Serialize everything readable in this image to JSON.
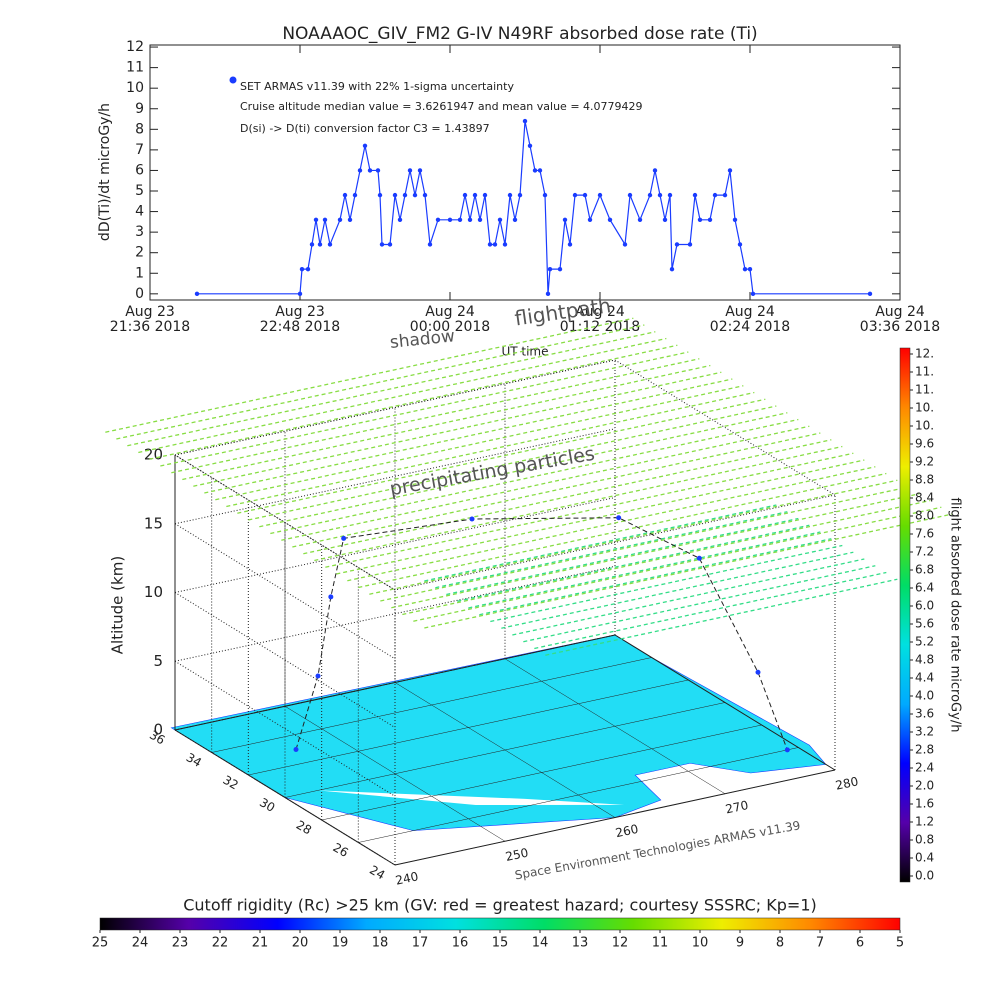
{
  "chart_data": [
    {
      "type": "line",
      "title": "NOAAAOC_GIV_FM2 G-IV    N49RF  absorbed dose rate (Ti)",
      "ylabel": "dD(Ti)/dt microGy/h",
      "xlabel": "UT time",
      "annotations": [
        "Cruise altitude median value = 3.6261947 and mean value = 4.0779429",
        "D(si) -> D(ti) conversion factor C3 = 1.43897"
      ],
      "xlim": [
        21.6,
        27.6
      ],
      "xticks": [
        {
          "value": 21.6,
          "label": [
            "Aug 23",
            "21:36 2018"
          ]
        },
        {
          "value": 22.8,
          "label": [
            "Aug 23",
            "22:48 2018"
          ]
        },
        {
          "value": 24.0,
          "label": [
            "Aug 24",
            "00:00 2018"
          ]
        },
        {
          "value": 25.2,
          "label": [
            "Aug 24",
            "01:12 2018"
          ]
        },
        {
          "value": 26.4,
          "label": [
            "Aug 24",
            "02:24 2018"
          ]
        },
        {
          "value": 27.6,
          "label": [
            "Aug 24",
            "03:36 2018"
          ]
        }
      ],
      "ylim": [
        -0.3,
        12.1
      ],
      "yticks": [
        0,
        1,
        2,
        3,
        4,
        5,
        6,
        7,
        8,
        9,
        10,
        11,
        12
      ],
      "x": [
        21.976,
        22.8,
        22.816,
        22.864,
        22.896,
        22.928,
        22.96,
        23.0,
        23.04,
        23.12,
        23.16,
        23.2,
        23.24,
        23.28,
        23.32,
        23.36,
        23.424,
        23.44,
        23.456,
        23.52,
        23.56,
        23.6,
        23.64,
        23.68,
        23.72,
        23.76,
        23.8,
        23.84,
        23.904,
        24.0,
        24.08,
        24.12,
        24.16,
        24.2,
        24.24,
        24.28,
        24.32,
        24.36,
        24.4,
        24.44,
        24.48,
        24.52,
        24.56,
        24.6,
        24.64,
        24.68,
        24.72,
        24.76,
        24.784,
        24.8,
        24.88,
        24.92,
        24.96,
        25.0,
        25.08,
        25.12,
        25.2,
        25.28,
        25.4,
        25.44,
        25.52,
        25.6,
        25.64,
        25.68,
        25.72,
        25.76,
        25.776,
        25.816,
        25.92,
        25.96,
        26.0,
        26.08,
        26.12,
        26.2,
        26.24,
        26.28,
        26.32,
        26.36,
        26.4,
        26.424,
        27.36
      ],
      "series": [
        {
          "name": "SET ARMAS v11.39 with 22% 1-sigma uncertainty",
          "color": "#1a3cff",
          "values": [
            0,
            0,
            1.2,
            1.2,
            2.4,
            3.6,
            2.4,
            3.6,
            2.4,
            3.6,
            4.8,
            3.6,
            4.8,
            6,
            7.2,
            6,
            6,
            4.8,
            2.4,
            2.4,
            4.8,
            3.6,
            4.8,
            6,
            4.8,
            6,
            4.8,
            2.4,
            3.6,
            3.6,
            3.6,
            4.8,
            3.6,
            4.8,
            3.6,
            4.8,
            2.4,
            2.4,
            3.6,
            2.4,
            4.8,
            3.6,
            4.8,
            8.4,
            7.2,
            6,
            6,
            4.8,
            0,
            1.2,
            1.2,
            3.6,
            2.4,
            4.8,
            4.8,
            3.6,
            4.8,
            3.6,
            2.4,
            4.8,
            3.6,
            4.8,
            6,
            4.8,
            3.6,
            4.8,
            1.2,
            2.4,
            2.4,
            4.8,
            3.6,
            3.6,
            4.8,
            4.8,
            6,
            3.6,
            2.4,
            1.2,
            1.2,
            0,
            0
          ]
        }
      ]
    },
    {
      "type": "surface3d",
      "zlabel": "Altitude (km)",
      "annotations": [
        "flightpath",
        "shadow",
        "precipitating particles",
        "Space Environment Technologies ARMAS v11.39"
      ],
      "xlim": [
        240,
        280
      ],
      "xticks": [
        240,
        250,
        260,
        270,
        280
      ],
      "ylim": [
        24,
        36
      ],
      "yticks": [
        24,
        26,
        28,
        30,
        32,
        34,
        36
      ],
      "zlim": [
        0,
        20
      ],
      "zticks": [
        0,
        5,
        10,
        15,
        20
      ],
      "map_color": "#22ddf5",
      "layer_colors": [
        "#88dd44",
        "#33dd88"
      ],
      "flight": {
        "color": "#1a3cff",
        "lon": [
          246,
          248,
          250,
          252,
          262,
          272,
          276,
          278,
          279
        ],
        "lat": [
          33,
          33,
          33.5,
          34,
          33,
          31,
          29,
          27,
          26
        ],
        "alt": [
          0,
          5,
          10,
          13.5,
          14,
          14,
          12,
          5,
          0
        ]
      }
    },
    {
      "type": "colorbar",
      "orientation": "vertical",
      "title": "flight absorbed dose rate microGy/h",
      "lim": [
        0,
        11.6
      ],
      "colors": [
        "#000000",
        "#5500aa",
        "#0000ff",
        "#00aaff",
        "#00e0e0",
        "#00dd66",
        "#66dd00",
        "#eeee00",
        "#ff8800",
        "#ff0000"
      ],
      "ticks": [
        {
          "value": 0,
          "label": "0.0"
        },
        0.4,
        0.8,
        1.2,
        1.6,
        {
          "value": 2,
          "label": "2.0"
        },
        2.4,
        2.8,
        3.2,
        3.6,
        {
          "value": 4,
          "label": "4.0"
        },
        4.4,
        4.8,
        5.2,
        5.6,
        {
          "value": 6,
          "label": "6.0"
        },
        6.4,
        6.8,
        7.2,
        7.6,
        {
          "value": 8,
          "label": "8.0"
        },
        8.4,
        8.8,
        9.2,
        9.6,
        {
          "value": 10,
          "label": "10."
        },
        {
          "value": 10.4,
          "label": "10."
        },
        {
          "value": 10.8,
          "label": "11."
        },
        {
          "value": 11.2,
          "label": "11."
        },
        {
          "value": 11.6,
          "label": "12."
        }
      ]
    },
    {
      "type": "colorbar",
      "orientation": "horizontal",
      "title": "Cutoff rigidity (Rc) >25 km (GV: red = greatest hazard; courtesy SSSRC; Kp=1)",
      "lim": [
        25,
        5
      ],
      "colors": [
        "#000000",
        "#5500aa",
        "#0000ff",
        "#00aaff",
        "#00e0e0",
        "#00dd66",
        "#66dd00",
        "#eeee00",
        "#ff8800",
        "#ff0000"
      ],
      "ticks": [
        25,
        24,
        23,
        22,
        21,
        20,
        19,
        18,
        17,
        16,
        15,
        14,
        13,
        12,
        11,
        10,
        9,
        8,
        7,
        6,
        5
      ]
    }
  ]
}
